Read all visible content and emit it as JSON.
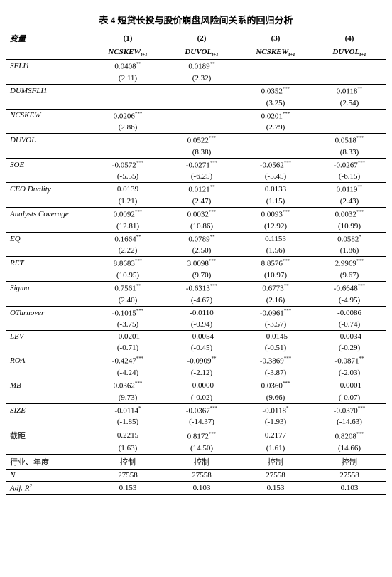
{
  "title": "表 4  短贷长投与股价崩盘风险间关系的回归分析",
  "var_header": "变量",
  "col_nums": [
    "(1)",
    "(2)",
    "(3)",
    "(4)"
  ],
  "dep_vars": [
    "NCSKEW",
    "DUVOL",
    "NCSKEW",
    "DUVOL"
  ],
  "dep_sub": "t+1",
  "rows": [
    {
      "label": "SFLI1",
      "type": "coef",
      "c": [
        "0.0408",
        "0.0189",
        "",
        ""
      ],
      "s": [
        "**",
        "**",
        "",
        ""
      ]
    },
    {
      "label": "",
      "type": "t",
      "c": [
        "(2.11)",
        "(2.32)",
        "",
        ""
      ]
    },
    {
      "label": "DUMSFLI1",
      "type": "coef",
      "c": [
        "",
        "",
        "0.0352",
        "0.0118"
      ],
      "s": [
        "",
        "",
        "***",
        "**"
      ]
    },
    {
      "label": "",
      "type": "t",
      "c": [
        "",
        "",
        "(3.25)",
        "(2.54)"
      ]
    },
    {
      "label": "NCSKEW",
      "type": "coef",
      "c": [
        "0.0206",
        "",
        "0.0201",
        ""
      ],
      "s": [
        "***",
        "",
        "***",
        ""
      ]
    },
    {
      "label": "",
      "type": "t",
      "c": [
        "(2.86)",
        "",
        "(2.79)",
        ""
      ]
    },
    {
      "label": "DUVOL",
      "type": "coef",
      "c": [
        "",
        "0.0522",
        "",
        "0.0518"
      ],
      "s": [
        "",
        "***",
        "",
        "***"
      ]
    },
    {
      "label": "",
      "type": "t",
      "c": [
        "",
        "(8.38)",
        "",
        "(8.33)"
      ]
    },
    {
      "label": "SOE",
      "type": "coef",
      "c": [
        "-0.0572",
        "-0.0271",
        "-0.0562",
        "-0.0267"
      ],
      "s": [
        "***",
        "***",
        "***",
        "***"
      ]
    },
    {
      "label": "",
      "type": "t",
      "c": [
        "(-5.55)",
        "(-6.25)",
        "(-5.45)",
        "(-6.15)"
      ]
    },
    {
      "label": "CEO Duality",
      "type": "coef",
      "c": [
        "0.0139",
        "0.0121",
        "0.0133",
        "0.0119"
      ],
      "s": [
        "",
        "**",
        "",
        "**"
      ]
    },
    {
      "label": "",
      "type": "t",
      "c": [
        "(1.21)",
        "(2.47)",
        "(1.15)",
        "(2.43)"
      ]
    },
    {
      "label": "Analysts Coverage",
      "type": "coef",
      "c": [
        "0.0092",
        "0.0032",
        "0.0093",
        "0.0032"
      ],
      "s": [
        "***",
        "***",
        "***",
        "***"
      ]
    },
    {
      "label": "",
      "type": "t",
      "c": [
        "(12.81)",
        "(10.86)",
        "(12.92)",
        "(10.99)"
      ]
    },
    {
      "label": "EQ",
      "type": "coef",
      "c": [
        "0.1664",
        "0.0789",
        "0.1153",
        "0.0582"
      ],
      "s": [
        "**",
        "**",
        "",
        "*"
      ]
    },
    {
      "label": "",
      "type": "t",
      "c": [
        "(2.22)",
        "(2.50)",
        "(1.56)",
        "(1.86)"
      ]
    },
    {
      "label": "RET",
      "type": "coef",
      "c": [
        "8.8683",
        "3.0098",
        "8.8576",
        "2.9969"
      ],
      "s": [
        "***",
        "***",
        "***",
        "***"
      ]
    },
    {
      "label": "",
      "type": "t",
      "c": [
        "(10.95)",
        "(9.70)",
        "(10.97)",
        "(9.67)"
      ]
    },
    {
      "label": "Sigma",
      "type": "coef",
      "c": [
        "0.7561",
        "-0.6313",
        "0.6773",
        "-0.6648"
      ],
      "s": [
        "**",
        "***",
        "**",
        "***"
      ]
    },
    {
      "label": "",
      "type": "t",
      "c": [
        "(2.40)",
        "(-4.67)",
        "(2.16)",
        "(-4.95)"
      ]
    },
    {
      "label": "OTurnover",
      "type": "coef",
      "c": [
        "-0.1015",
        "-0.0110",
        "-0.0961",
        "-0.0086"
      ],
      "s": [
        "***",
        "",
        "***",
        ""
      ]
    },
    {
      "label": "",
      "type": "t",
      "c": [
        "(-3.75)",
        "(-0.94)",
        "(-3.57)",
        "(-0.74)"
      ]
    },
    {
      "label": "LEV",
      "type": "coef",
      "c": [
        "-0.0201",
        "-0.0054",
        "-0.0145",
        "-0.0034"
      ],
      "s": [
        "",
        "",
        "",
        ""
      ]
    },
    {
      "label": "",
      "type": "t",
      "c": [
        "(-0.71)",
        "(-0.45)",
        "(-0.51)",
        "(-0.29)"
      ]
    },
    {
      "label": "ROA",
      "type": "coef",
      "c": [
        "-0.4247",
        "-0.0909",
        "-0.3869",
        "-0.0871"
      ],
      "s": [
        "***",
        "**",
        "***",
        "**"
      ]
    },
    {
      "label": "",
      "type": "t",
      "c": [
        "(-4.24)",
        "(-2.12)",
        "(-3.87)",
        "(-2.03)"
      ]
    },
    {
      "label": "MB",
      "type": "coef",
      "c": [
        "0.0362",
        "-0.0000",
        "0.0360",
        "-0.0001"
      ],
      "s": [
        "***",
        "",
        "***",
        ""
      ]
    },
    {
      "label": "",
      "type": "t",
      "c": [
        "(9.73)",
        "(-0.02)",
        "(9.66)",
        "(-0.07)"
      ]
    },
    {
      "label": "SIZE",
      "type": "coef",
      "c": [
        "-0.0114",
        "-0.0367",
        "-0.0118",
        "-0.0370"
      ],
      "s": [
        "*",
        "***",
        "*",
        "***"
      ]
    },
    {
      "label": "",
      "type": "t",
      "c": [
        "(-1.85)",
        "(-14.37)",
        "(-1.93)",
        "(-14.63)"
      ]
    },
    {
      "label": "截距",
      "type": "coef",
      "c": [
        "0.2215",
        "0.8172",
        "0.2177",
        "0.8208"
      ],
      "s": [
        "",
        "***",
        "",
        "***"
      ],
      "no_italic": true
    },
    {
      "label": "",
      "type": "t",
      "c": [
        "(1.63)",
        "(14.50)",
        "(1.61)",
        "(14.66)"
      ]
    }
  ],
  "footer": [
    {
      "label": "行业、年度",
      "c": [
        "控制",
        "控制",
        "控制",
        "控制"
      ],
      "no_italic": true
    },
    {
      "label": "N",
      "c": [
        "27558",
        "27558",
        "27558",
        "27558"
      ]
    },
    {
      "label": "Adj. R²",
      "c": [
        "0.153",
        "0.103",
        "0.153",
        "0.103"
      ],
      "html": "Adj. R<span class='sup'>2</span>"
    }
  ]
}
